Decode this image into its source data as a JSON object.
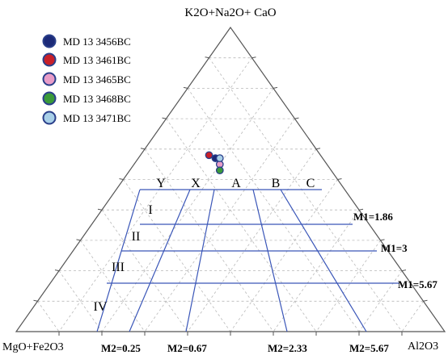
{
  "chart_data": {
    "type": "scatter",
    "subtype": "ternary",
    "grid": true,
    "legend_position": "top-left",
    "axes": {
      "top": "K2O+Na2O+ CaO",
      "left": "MgO+Fe2O3",
      "right": "Al2O3"
    },
    "zone_labels": [
      "Y",
      "X",
      "A",
      "B",
      "C"
    ],
    "row_labels": [
      "I",
      "II",
      "III",
      "IV"
    ],
    "m1_labels": [
      "M1=1.86",
      "M1=3",
      "M1=5.67"
    ],
    "m2_labels": [
      "M2=0.25",
      "M2=0.67",
      "M2=2.33",
      "M2=5.67"
    ],
    "series": [
      {
        "name": "MD 13 3456BC",
        "color": "#1c2a78",
        "points": [
          {
            "top": 57,
            "left": 25,
            "right": 18
          }
        ]
      },
      {
        "name": "MD 13 3461BC",
        "color": "#c8202a",
        "points": [
          {
            "top": 58,
            "left": 26,
            "right": 16
          }
        ]
      },
      {
        "name": "MD 13 3465BC",
        "color": "#e89cc8",
        "points": [
          {
            "top": 55,
            "left": 25,
            "right": 20
          }
        ]
      },
      {
        "name": "MD 13 3468BC",
        "color": "#3a9a3a",
        "points": [
          {
            "top": 53,
            "left": 26,
            "right": 21
          }
        ]
      },
      {
        "name": "MD 13 3471BC",
        "color": "#a8cfe8",
        "points": [
          {
            "top": 57,
            "left": 24,
            "right": 19
          }
        ]
      }
    ]
  }
}
